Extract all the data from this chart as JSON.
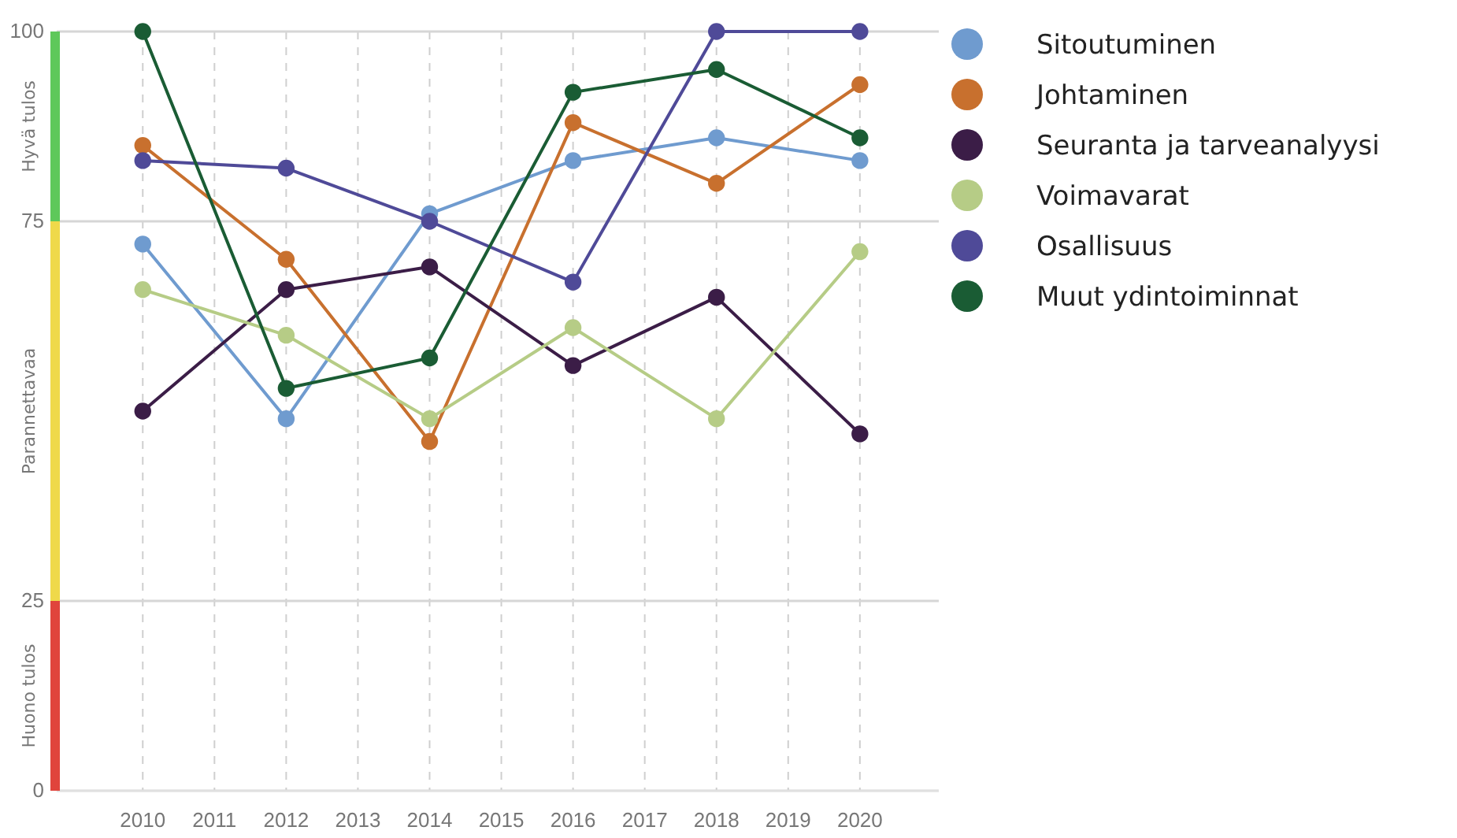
{
  "chart_data": {
    "type": "line",
    "x": [
      2010,
      2012,
      2014,
      2016,
      2018,
      2020
    ],
    "xlim": [
      2008.8,
      2021.1
    ],
    "xticks": [
      2010,
      2011,
      2012,
      2013,
      2014,
      2015,
      2016,
      2017,
      2018,
      2019,
      2020
    ],
    "ylim": [
      0,
      100
    ],
    "yticks": [
      0,
      25,
      75,
      100
    ],
    "grid": true,
    "marker": "circle",
    "line_style": "solid",
    "legend": "right",
    "series": [
      {
        "name": "Sitoutuminen",
        "color": "#6f9bcf",
        "values": [
          72,
          49,
          76,
          83,
          86,
          83
        ]
      },
      {
        "name": "Johtaminen",
        "color": "#c8702e",
        "values": [
          85,
          70,
          46,
          88,
          80,
          93
        ]
      },
      {
        "name": "Seuranta ja tarveanalyysi",
        "color": "#3b1d47",
        "values": [
          50,
          66,
          69,
          56,
          65,
          47
        ]
      },
      {
        "name": "Voimavarat",
        "color": "#b6cc86",
        "values": [
          66,
          60,
          49,
          61,
          49,
          71
        ]
      },
      {
        "name": "Osallisuus",
        "color": "#4f4a98",
        "values": [
          83,
          82,
          75,
          67,
          100,
          100
        ]
      },
      {
        "name": "Muut ydintoiminnat",
        "color": "#1a5c34",
        "values": [
          100,
          53,
          57,
          92,
          95,
          86
        ]
      }
    ],
    "annotations": [
      "Hyvä tulos",
      "Parannettavaa",
      "Huono tulos"
    ]
  }
}
